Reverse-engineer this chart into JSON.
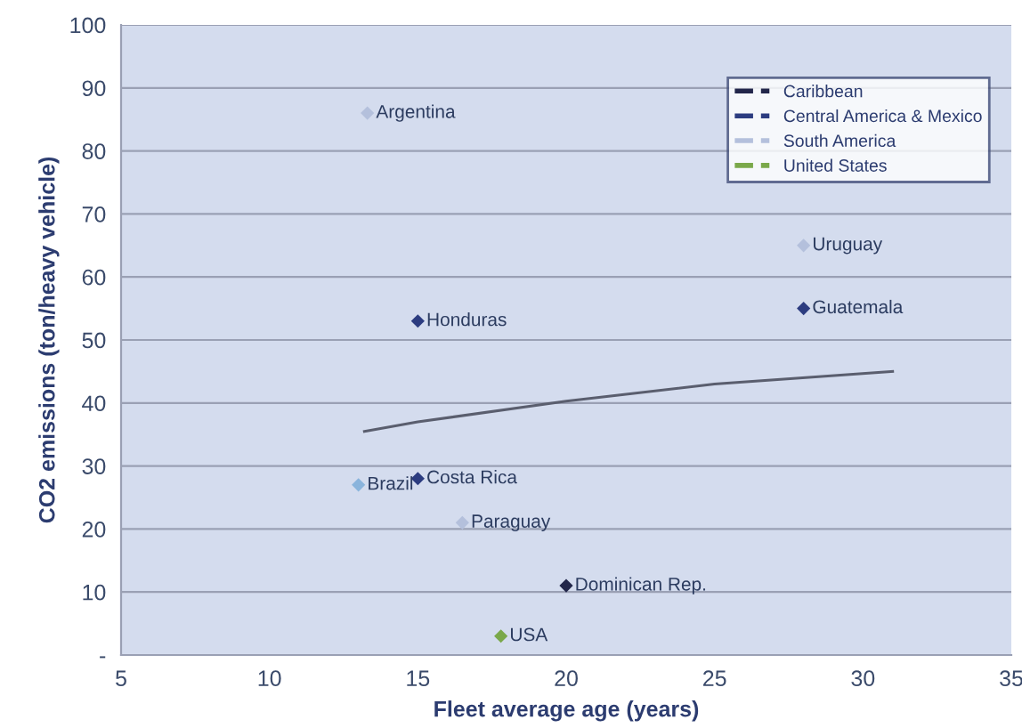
{
  "chart_data": {
    "type": "scatter",
    "xlabel": "Fleet average age (years)",
    "ylabel": "CO2 emissions (ton/heavy vehicle)",
    "xlim": [
      5,
      35
    ],
    "xticks": [
      5,
      10,
      15,
      20,
      25,
      30,
      35
    ],
    "ylim": [
      0,
      100
    ],
    "yticks": [
      {
        "value": 0,
        "label": "-"
      },
      10,
      20,
      30,
      40,
      50,
      60,
      70,
      80,
      90,
      100
    ],
    "grid": "y",
    "legend": "top right",
    "marker": "diamond",
    "series": [
      {
        "name": "Caribbean",
        "color": "#22264a",
        "x": [
          20
        ],
        "values": [
          11
        ]
      },
      {
        "name": "Central America & Mexico",
        "color": "#2c3c80",
        "x": [
          15,
          28,
          15
        ],
        "values": [
          53,
          55,
          28
        ]
      },
      {
        "name": "South America",
        "color": "#b4c0dc",
        "colors": [
          "#b4c0dc",
          "#b4c0dc",
          "#8ab4dc",
          "#b4c0dc"
        ],
        "x": [
          13.3,
          28,
          13,
          16.5
        ],
        "values": [
          86,
          65,
          27,
          21
        ]
      },
      {
        "name": "United States",
        "color": "#7aa84a",
        "x": [
          17.8
        ],
        "values": [
          3
        ]
      },
      {
        "type": "line",
        "color": "#5a5e6e",
        "marker": "none",
        "x": [
          13.2,
          15,
          20,
          25,
          31
        ],
        "values": [
          35.5,
          37,
          40.3,
          43,
          45
        ]
      }
    ],
    "annotations": [
      {
        "text": "Argentina",
        "x": 13.3,
        "y": 86
      },
      {
        "text": "Uruguay",
        "x": 28,
        "y": 65
      },
      {
        "text": "Guatemala",
        "x": 28,
        "y": 55
      },
      {
        "text": "Honduras",
        "x": 15,
        "y": 53
      },
      {
        "text": "Brazil",
        "x": 13,
        "y": 27
      },
      {
        "text": "Costa Rica",
        "x": 15,
        "y": 28
      },
      {
        "text": "Paraguay",
        "x": 16.5,
        "y": 21
      },
      {
        "text": "Dominican Rep.",
        "x": 20,
        "y": 11
      },
      {
        "text": "USA",
        "x": 17.8,
        "y": 3
      }
    ]
  }
}
